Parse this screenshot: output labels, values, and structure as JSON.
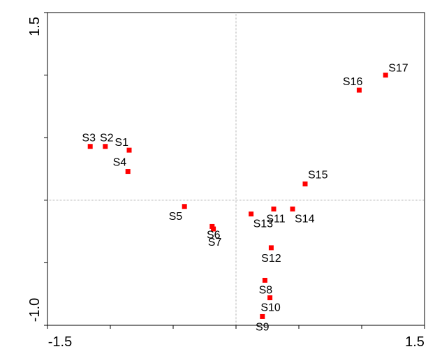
{
  "chart_data": {
    "type": "scatter",
    "title": "",
    "xlabel": "",
    "ylabel": "",
    "xlim": [
      -1.5,
      1.5
    ],
    "ylim": [
      -1.0,
      1.5
    ],
    "x_tick_labels": [
      "-1.5",
      "1.5"
    ],
    "y_tick_labels": [
      "-1.0",
      "1.5"
    ],
    "reference_lines": {
      "x": 0,
      "y": 0
    },
    "grid": false,
    "legend": "none",
    "marker_color": "#ff0000",
    "points": [
      {
        "label": "S1",
        "x": -0.85,
        "y": 0.4
      },
      {
        "label": "S2",
        "x": -1.04,
        "y": 0.43
      },
      {
        "label": "S3",
        "x": -1.16,
        "y": 0.43
      },
      {
        "label": "S4",
        "x": -0.86,
        "y": 0.23
      },
      {
        "label": "S5",
        "x": -0.41,
        "y": -0.05
      },
      {
        "label": "S6",
        "x": -0.19,
        "y": -0.21
      },
      {
        "label": "S7",
        "x": -0.18,
        "y": -0.23
      },
      {
        "label": "S8",
        "x": 0.23,
        "y": -0.64
      },
      {
        "label": "S9",
        "x": 0.21,
        "y": -0.93
      },
      {
        "label": "S10",
        "x": 0.27,
        "y": -0.78
      },
      {
        "label": "S11",
        "x": 0.3,
        "y": -0.07
      },
      {
        "label": "S12",
        "x": 0.28,
        "y": -0.38
      },
      {
        "label": "S13",
        "x": 0.12,
        "y": -0.11
      },
      {
        "label": "S14",
        "x": 0.45,
        "y": -0.07
      },
      {
        "label": "S15",
        "x": 0.55,
        "y": 0.13
      },
      {
        "label": "S16",
        "x": 0.98,
        "y": 0.88
      },
      {
        "label": "S17",
        "x": 1.19,
        "y": 1.0
      }
    ]
  }
}
